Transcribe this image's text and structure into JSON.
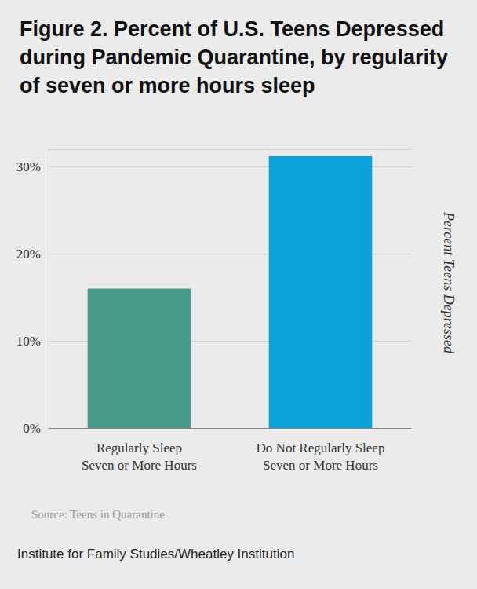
{
  "chart_data": {
    "type": "bar",
    "title": "Figure 2. Percent of U.S. Teens Depressed during Pandemic Quarantine, by regularity of seven or more hours sleep",
    "y_label": "Percent Teens Depressed",
    "categories": [
      "Regularly Sleep\nSeven or More Hours",
      "Do Not Regularly Sleep\nSeven or More Hours"
    ],
    "values": [
      16,
      31.2
    ],
    "colors": [
      "#4a9a8b",
      "#0ba3d9"
    ],
    "ylim": [
      0,
      32
    ],
    "yticks": [
      {
        "value": 0,
        "label": "0%"
      },
      {
        "value": 10,
        "label": "10%"
      },
      {
        "value": 20,
        "label": "20%"
      },
      {
        "value": 30,
        "label": "30%"
      }
    ],
    "grid": true,
    "annotations": [
      "Source: Teens in Quarantine",
      "Institute for Family Studies/Wheatley Institution"
    ]
  }
}
